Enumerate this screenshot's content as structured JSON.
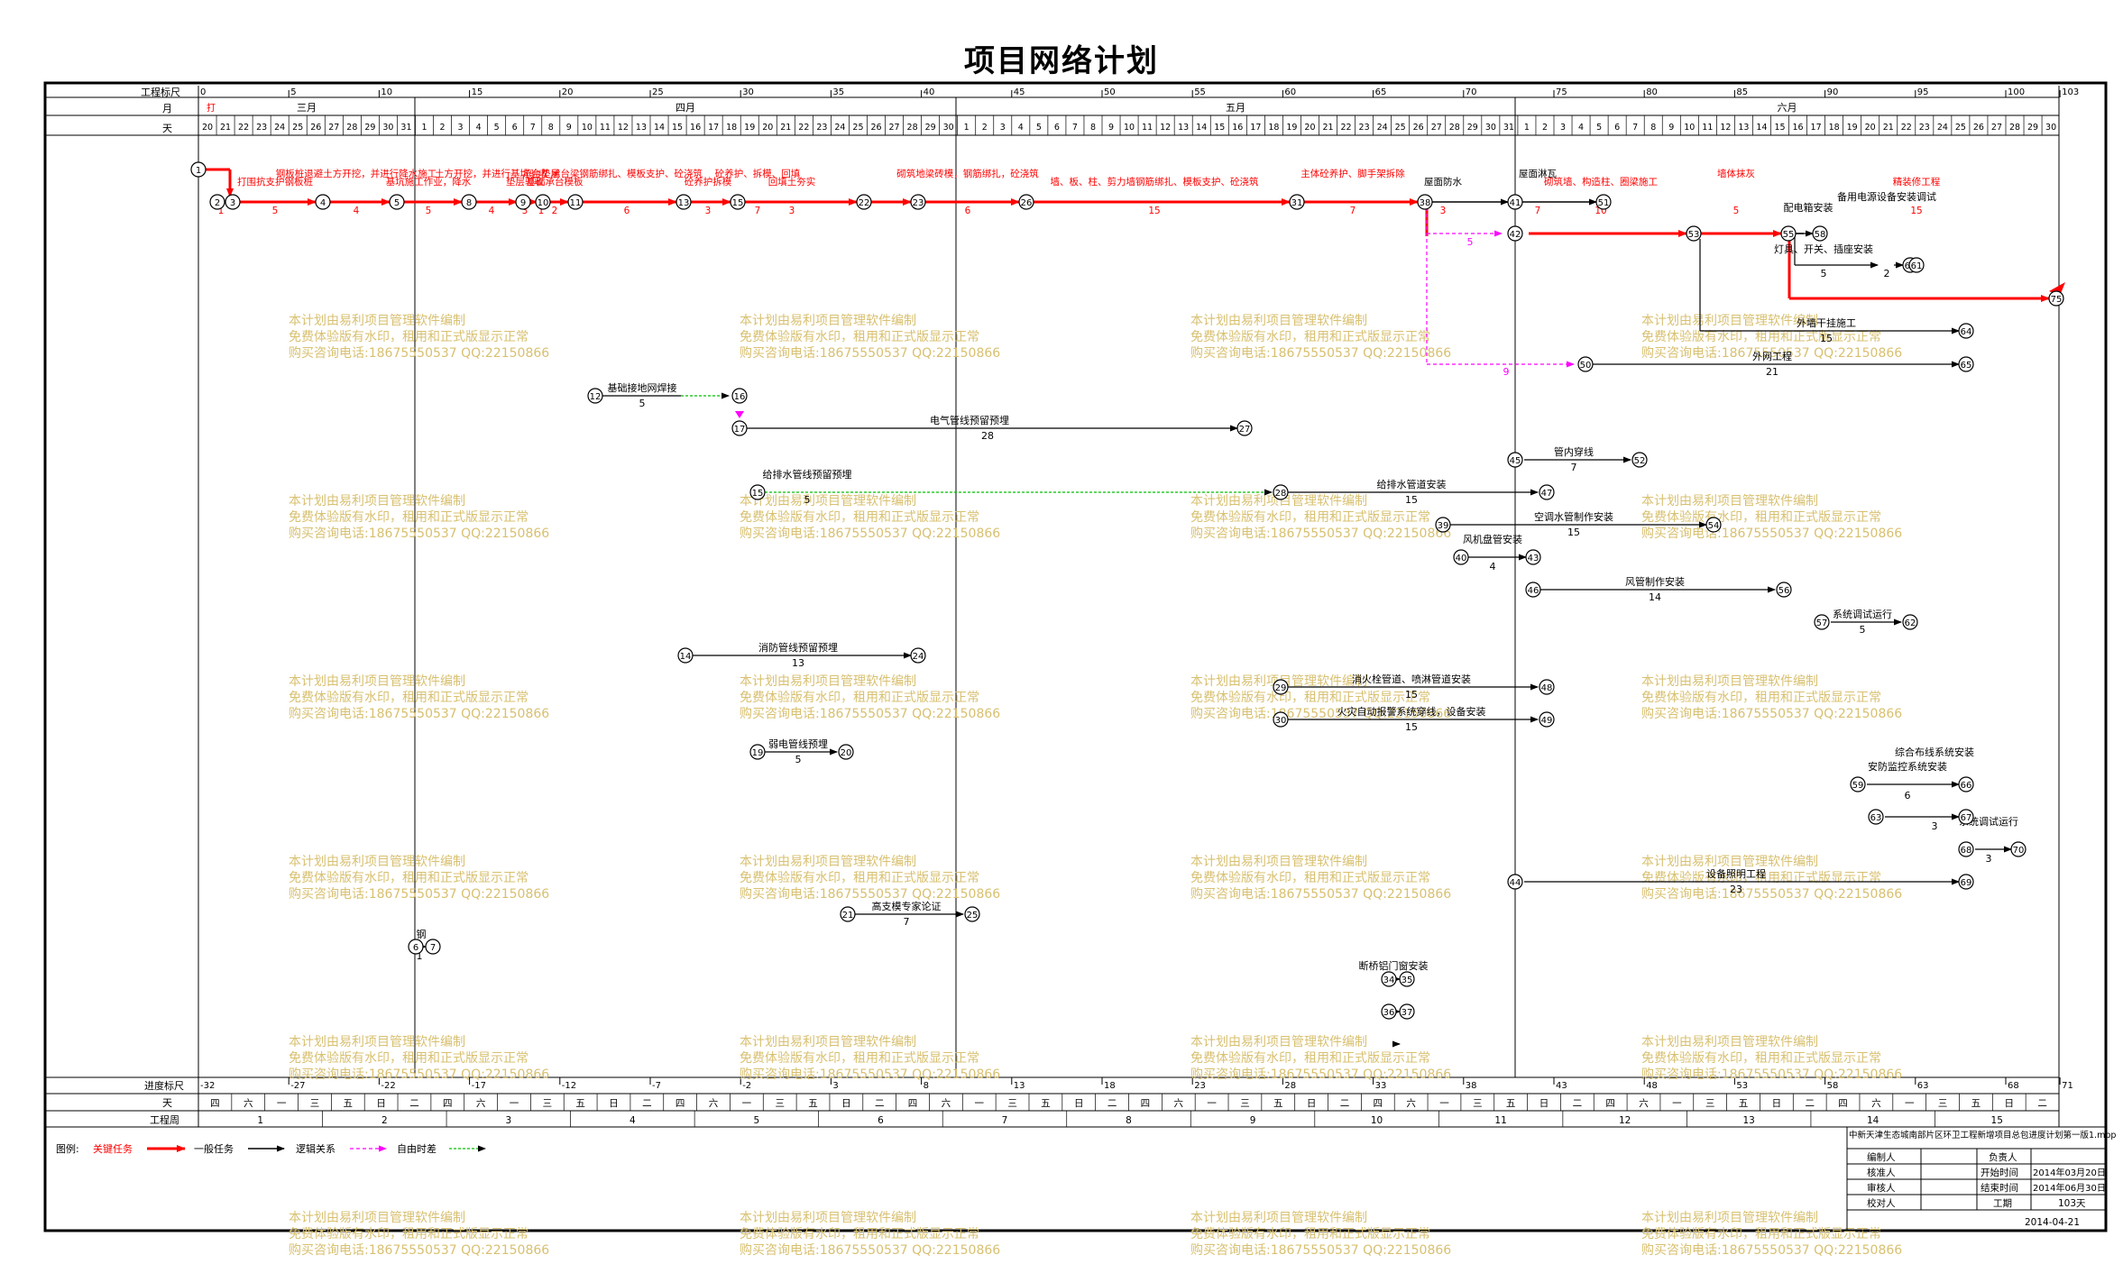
{
  "title": "项目网络计划",
  "scale": {
    "label_eng_scale": "工程标尺",
    "label_month": "月",
    "label_day": "天",
    "label_prog_scale": "进度标尺",
    "label_day2": "天",
    "label_week": "工程周",
    "eng_ticks": [
      "0",
      "5",
      "10",
      "15",
      "20",
      "25",
      "30",
      "35",
      "40",
      "45",
      "50",
      "55",
      "60",
      "65",
      "70",
      "75",
      "80",
      "85",
      "90",
      "95",
      "100",
      "103"
    ],
    "months": [
      "三月",
      "四月",
      "五月",
      "六月"
    ],
    "month_short": "打",
    "days": [
      "20",
      "21",
      "22",
      "23",
      "24",
      "25",
      "26",
      "27",
      "28",
      "29",
      "30",
      "31",
      "1",
      "2",
      "3",
      "4",
      "5",
      "6",
      "7",
      "8",
      "9",
      "10",
      "11",
      "12",
      "13",
      "14",
      "15",
      "16",
      "17",
      "18",
      "19",
      "20",
      "21",
      "22",
      "23",
      "24",
      "25",
      "26",
      "27",
      "28",
      "29",
      "30",
      "1",
      "2",
      "3",
      "4",
      "5",
      "6",
      "7",
      "8",
      "9",
      "10",
      "11",
      "12",
      "13",
      "14",
      "15",
      "16",
      "17",
      "18",
      "19",
      "20",
      "21",
      "22",
      "23",
      "24",
      "25",
      "26",
      "27",
      "28",
      "29",
      "30",
      "31",
      "1",
      "2",
      "3",
      "4",
      "5",
      "6",
      "7",
      "8",
      "9",
      "10",
      "11",
      "12",
      "13",
      "14",
      "15",
      "16",
      "17",
      "18",
      "19",
      "20",
      "21",
      "22",
      "23",
      "24",
      "25",
      "26",
      "27",
      "28",
      "29",
      "30"
    ],
    "prog_ticks": [
      "-32",
      "-27",
      "-22",
      "-17",
      "-12",
      "-7",
      "-2",
      "3",
      "8",
      "13",
      "18",
      "23",
      "28",
      "33",
      "38",
      "43",
      "48",
      "53",
      "58",
      "63",
      "68",
      "71"
    ],
    "weekdays": [
      "四",
      "六",
      "一",
      "三",
      "五",
      "日",
      "二",
      "四",
      "六",
      "一",
      "三",
      "五",
      "日",
      "二",
      "四",
      "六",
      "一",
      "三",
      "五",
      "日",
      "二",
      "四",
      "六",
      "一",
      "三",
      "五",
      "日",
      "二",
      "四",
      "六",
      "一",
      "三",
      "五",
      "日",
      "二",
      "四",
      "六",
      "一",
      "三",
      "五",
      "日",
      "二",
      "四",
      "六",
      "一",
      "三",
      "五",
      "日",
      "二",
      "四",
      "六",
      "一",
      "三",
      "五",
      "日",
      "二"
    ],
    "weeks": [
      "1",
      "2",
      "3",
      "4",
      "5",
      "6",
      "7",
      "8",
      "9",
      "10",
      "11",
      "12",
      "13",
      "14",
      "15"
    ]
  },
  "critical": {
    "labels": [
      "打围抗支护钢板桩",
      "钢板桩退避土方开挖，并进行降水施工",
      "基坑施工作业，降水",
      "土方开挖，并进行基坑验收",
      "垫层验收",
      "承台垫层",
      "基础承台模板",
      "承台梁钢筋绑扎、模板支护、砼浇筑",
      "砼养护拆模",
      "砼养护、拆模、回填",
      "回填土夯实",
      "砌筑地梁砖模，钢筋绑扎，砼浇筑",
      "墙、板、柱、剪力墙钢筋绑扎、模板支护、砼浇筑",
      "主体砼养护、脚手架拆除",
      "屋面防水",
      "屋面淋瓦",
      "砌筑墙、构造柱、圈梁施工",
      "墙体抹灰",
      "精装修工程"
    ],
    "durations": [
      "1",
      "5",
      "4",
      "5",
      "4",
      "3",
      "1",
      "2",
      "6",
      "3",
      "7",
      "3",
      "6",
      "15",
      "7",
      "3",
      "7",
      "10",
      "5",
      "15"
    ],
    "top_label": "打围抗支护钢板桩"
  },
  "tasks": {
    "t12": "基础接地网焊接",
    "t17": "电气管线预留预埋",
    "t15": "给排水管线预留预埋",
    "t23": "给排水管道安装",
    "t45": "管内穿线",
    "t39": "空调水管制作安装",
    "t40": "风机盘管安装",
    "t46": "风管制作安装",
    "t57": "系统调试运行",
    "t14": "消防管线预留预埋",
    "t29": "消火栓管道、喷淋管道安装",
    "t30": "火灾自动报警系统穿线，设备安装",
    "t19": "弱电管线预埋",
    "t59": "安防监控系统安装",
    "t63": "综合布线系统安装",
    "t68": "系统调试运行",
    "t44": "设备照明工程",
    "t21": "高支模专家论证",
    "t64": "外墙干挂施工",
    "t65": "外网工程",
    "t55a": "配电箱安装",
    "t55b": "灯具、开关、插座安装",
    "t55c": "备用电源设备安装调试",
    "t6": "钢",
    "t34": "断桥铝门窗安装",
    "dur": {
      "t12": "5",
      "t17": "28",
      "t15": "5",
      "t23": "15",
      "t45": "7",
      "t39": "15",
      "t40": "4",
      "t46": "14",
      "t57": "5",
      "t14": "13",
      "t29": "15",
      "t30": "15",
      "t19": "5",
      "t59": "6",
      "t63": "3",
      "t68": "3",
      "t44": "23",
      "t21": "7",
      "t64": "15",
      "t65": "21",
      "t55a": "5",
      "t55c": "2",
      "t6": "1",
      "fl1": "5",
      "fl2": "9"
    }
  },
  "nodes": [
    "1",
    "2",
    "3",
    "4",
    "5",
    "8",
    "9",
    "10",
    "11",
    "13",
    "15",
    "22",
    "23",
    "26",
    "31",
    "38",
    "41",
    "51",
    "42",
    "53",
    "55",
    "58",
    "60",
    "61",
    "75",
    "64",
    "65",
    "50",
    "12",
    "16",
    "17",
    "27",
    "45",
    "52",
    "15",
    "28",
    "47",
    "39",
    "54",
    "40",
    "43",
    "46",
    "56",
    "57",
    "62",
    "14",
    "24",
    "29",
    "48",
    "30",
    "49",
    "19",
    "20",
    "59",
    "66",
    "63",
    "67",
    "68",
    "70",
    "44",
    "69",
    "21",
    "25",
    "6",
    "7",
    "34",
    "35",
    "36",
    "37"
  ],
  "watermark": {
    "line1": "本计划由易利项目管理软件编制",
    "line2": "免费体验版有水印，租用和正式版显示正常",
    "line3": "购买咨询电话:18675550537 QQ:22150866"
  },
  "legend": {
    "label": "图例:",
    "critical": "关键任务",
    "normal": "一般任务",
    "logic": "逻辑关系",
    "float": "自由时差"
  },
  "info": {
    "project": "中新天津生态城南部片区环卫工程新增项目总包进度计划第一版1.mpp",
    "editor_label": "编制人",
    "reviewer_label": "核准人",
    "auditor_label": "审核人",
    "checker_label": "校对人",
    "owner_label": "负责人",
    "start_label": "开始时间",
    "start_value": "2014年03月20日",
    "end_label": "结束时间",
    "end_value": "2014年06月30日",
    "duration_label": "工期",
    "duration_value": "103天",
    "date": "2014-04-21"
  },
  "colors": {
    "critical": "#ff0000",
    "normal": "#000000",
    "float": "#ff00ff",
    "free": "#00c000",
    "watermark": "#d8c070"
  }
}
